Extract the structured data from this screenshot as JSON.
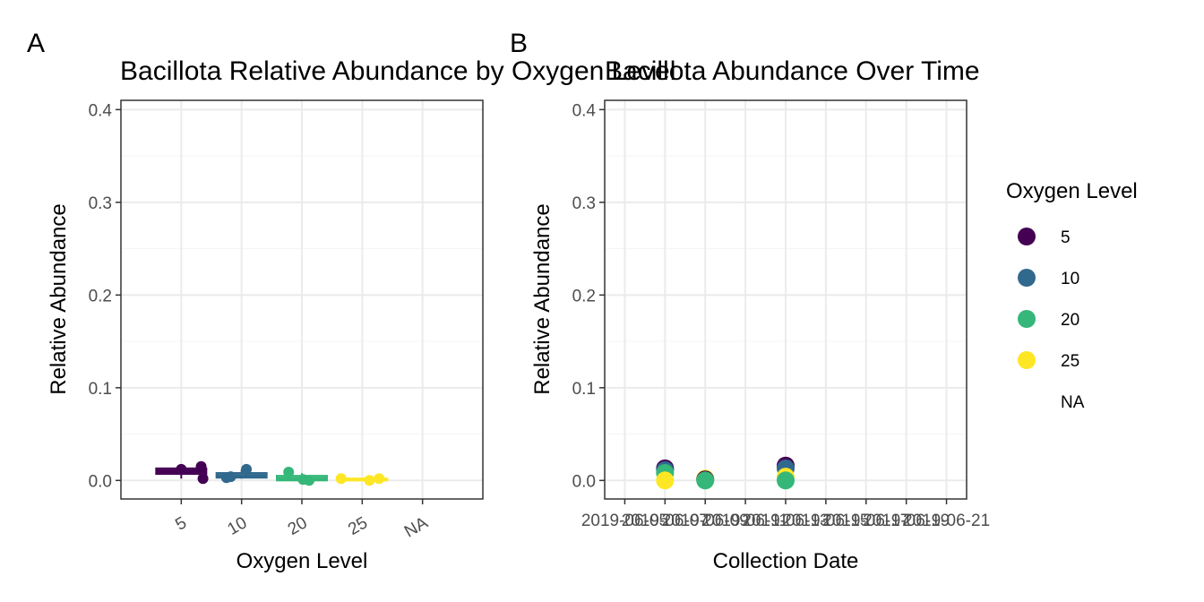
{
  "colors": {
    "5": "#440154",
    "10": "#31688E",
    "20": "#35B779",
    "25": "#FDE725",
    "grid_major": "#EBEBEB",
    "grid_minor": "#F5F5F5",
    "panel_border": "#333333",
    "tick_text": "#4D4D4D"
  },
  "chart_data": [
    {
      "type": "box",
      "tag": "A",
      "title": "Bacillota Relative Abundance by Oxygen Level",
      "xlabel": "Oxygen Level",
      "ylabel": "Relative Abundance",
      "ylim": [
        -0.02,
        0.41
      ],
      "yticks": [
        0.0,
        0.1,
        0.2,
        0.3,
        0.4
      ],
      "ytick_labels": [
        "0.0",
        "0.1",
        "0.2",
        "0.3",
        "0.4"
      ],
      "categories": [
        "5",
        "10",
        "20",
        "25",
        "NA"
      ],
      "grid": true,
      "boxes": [
        {
          "category": "5",
          "q1": 0.007,
          "median": 0.01,
          "q3": 0.013,
          "whisker_low": 0.002,
          "whisker_high": 0.015
        },
        {
          "category": "10",
          "q1": 0.003,
          "median": 0.005,
          "q3": 0.008,
          "whisker_low": 0.002,
          "whisker_high": 0.012
        },
        {
          "category": "20",
          "q1": 0.0,
          "median": 0.002,
          "q3": 0.005,
          "whisker_low": 0.0,
          "whisker_high": 0.008
        },
        {
          "category": "25",
          "q1": 0.0,
          "median": 0.001,
          "q3": 0.002,
          "whisker_low": 0.0,
          "whisker_high": 0.002
        }
      ],
      "points": [
        {
          "category": "5",
          "jitter": 0.0,
          "y": 0.012
        },
        {
          "category": "5",
          "jitter": 0.33,
          "y": 0.015
        },
        {
          "category": "5",
          "jitter": 0.36,
          "y": 0.002
        },
        {
          "category": "10",
          "jitter": -0.25,
          "y": 0.003
        },
        {
          "category": "10",
          "jitter": -0.18,
          "y": 0.004
        },
        {
          "category": "10",
          "jitter": 0.08,
          "y": 0.012
        },
        {
          "category": "20",
          "jitter": -0.22,
          "y": 0.009
        },
        {
          "category": "20",
          "jitter": 0.02,
          "y": 0.001
        },
        {
          "category": "20",
          "jitter": 0.12,
          "y": 0.0
        },
        {
          "category": "25",
          "jitter": -0.35,
          "y": 0.002
        },
        {
          "category": "25",
          "jitter": 0.12,
          "y": 0.0
        },
        {
          "category": "25",
          "jitter": 0.28,
          "y": 0.002
        }
      ]
    },
    {
      "type": "scatter",
      "tag": "B",
      "title": "Bacillota Abundance Over Time",
      "xlabel": "Collection Date",
      "ylabel": "Relative Abundance",
      "ylim": [
        -0.02,
        0.41
      ],
      "yticks": [
        0.0,
        0.1,
        0.2,
        0.3,
        0.4
      ],
      "ytick_labels": [
        "0.0",
        "0.1",
        "0.2",
        "0.3",
        "0.4"
      ],
      "xlim": [
        "2019-06-04",
        "2019-06-22"
      ],
      "xticks": [
        "2019-06-05",
        "2019-06-07",
        "2019-06-09",
        "2019-06-11",
        "2019-06-13",
        "2019-06-15",
        "2019-06-17",
        "2019-06-19",
        "2019-06-21"
      ],
      "xtick_labels": [
        "2019-06-05",
        "2019-06-07",
        "2019-06-09",
        "2019-06-11",
        "2019-06-13",
        "2019-06-15",
        "2019-06-17",
        "2019-06-19",
        "2019-06-21"
      ],
      "grid": true,
      "legend": {
        "title": "Oxygen Level",
        "position": "right",
        "entries": [
          "5",
          "10",
          "20",
          "25",
          "NA"
        ]
      },
      "points": [
        {
          "date": "2019-06-07",
          "oxygen": "5",
          "y": 0.013
        },
        {
          "date": "2019-06-07",
          "oxygen": "10",
          "y": 0.011
        },
        {
          "date": "2019-06-07",
          "oxygen": "20",
          "y": 0.008
        },
        {
          "date": "2019-06-07",
          "oxygen": "25",
          "y": 0.0
        },
        {
          "date": "2019-06-09",
          "oxygen": "25",
          "y": 0.002
        },
        {
          "date": "2019-06-09",
          "oxygen": "5",
          "y": 0.001
        },
        {
          "date": "2019-06-09",
          "oxygen": "20",
          "y": 0.0
        },
        {
          "date": "2019-06-13",
          "oxygen": "5",
          "y": 0.016
        },
        {
          "date": "2019-06-13",
          "oxygen": "10",
          "y": 0.013
        },
        {
          "date": "2019-06-13",
          "oxygen": "25",
          "y": 0.004
        },
        {
          "date": "2019-06-13",
          "oxygen": "20",
          "y": 0.0
        }
      ]
    }
  ]
}
